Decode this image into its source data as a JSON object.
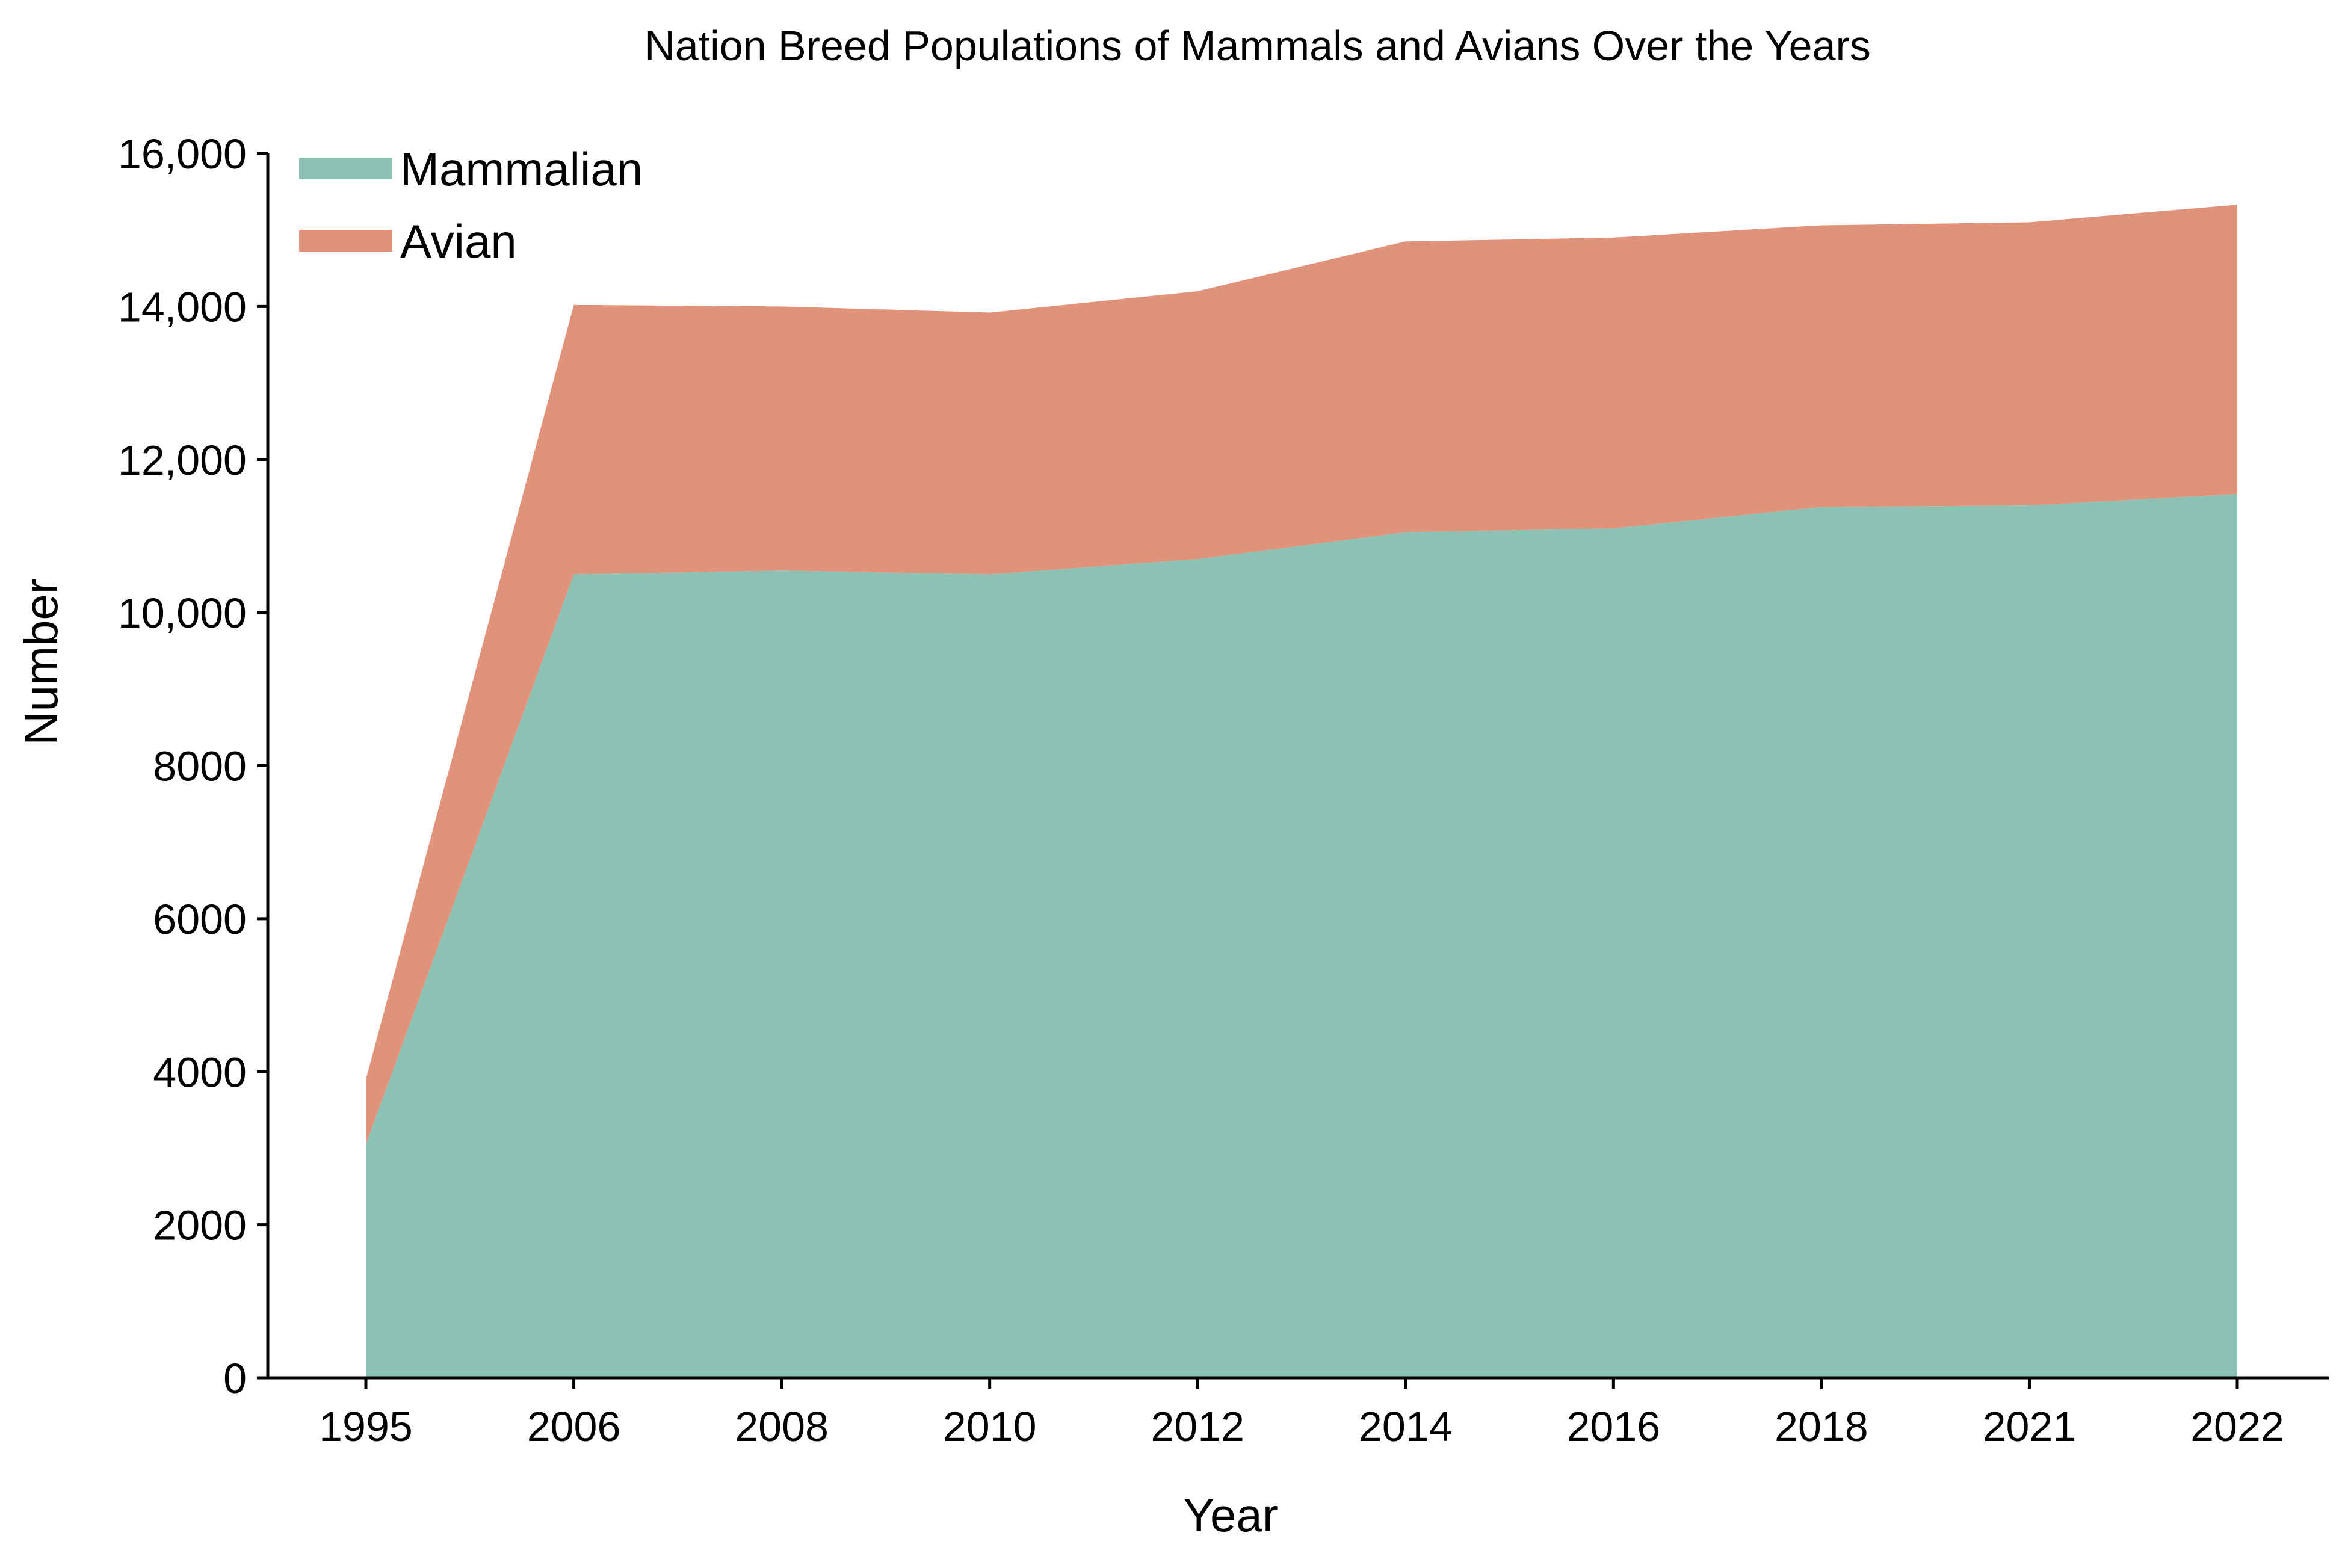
{
  "chart_data": {
    "type": "area",
    "stacked": true,
    "title": "Nation Breed Populations of Mammals and Avians Over the Years",
    "xlabel": "Year",
    "ylabel": "Number",
    "x": [
      "1995",
      "2006",
      "2008",
      "2010",
      "2012",
      "2014",
      "2016",
      "2018",
      "2021",
      "2022"
    ],
    "series": [
      {
        "name": "Mammalian",
        "color": "#8cc2b4",
        "values": [
          3050,
          10500,
          10550,
          10500,
          10700,
          11050,
          11100,
          11380,
          11400,
          11550
        ]
      },
      {
        "name": "Avian",
        "color": "#e1927a",
        "values": [
          850,
          3520,
          3450,
          3420,
          3500,
          3800,
          3800,
          3680,
          3700,
          3780
        ]
      }
    ],
    "ylim": [
      0,
      16000
    ],
    "yticks": [
      {
        "value": 0,
        "label": "0"
      },
      {
        "value": 2000,
        "label": "2000"
      },
      {
        "value": 4000,
        "label": "4000"
      },
      {
        "value": 6000,
        "label": "6000"
      },
      {
        "value": 8000,
        "label": "8000"
      },
      {
        "value": 10000,
        "label": "10,000"
      },
      {
        "value": 12000,
        "label": "12,000"
      },
      {
        "value": 14000,
        "label": "14,000"
      },
      {
        "value": 16000,
        "label": "16,000"
      }
    ],
    "grid": false,
    "legend_position": "top-left"
  }
}
